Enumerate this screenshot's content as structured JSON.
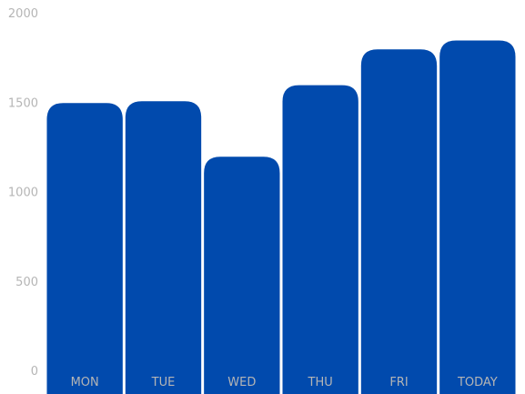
{
  "chart_data": {
    "type": "bar",
    "categories": [
      "MON",
      "TUE",
      "WED",
      "THU",
      "FRI",
      "TODAY"
    ],
    "values": [
      1500,
      1510,
      1200,
      1600,
      1800,
      1850
    ],
    "ylim": [
      0,
      2000
    ],
    "y_ticks": [
      "0",
      "500",
      "1000",
      "1500",
      "2000"
    ],
    "grid": false,
    "legend": false,
    "colors": {
      "bar": "#014aad",
      "tick_text": "#b5b5b5"
    }
  }
}
